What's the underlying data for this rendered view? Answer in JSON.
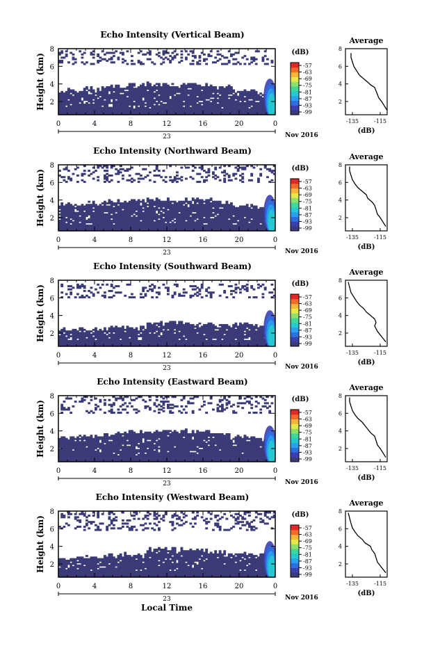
{
  "figure": {
    "xlabel": "Local Time",
    "date_label": "23",
    "month_label": "Nov 2016",
    "colorbar_unit": "(dB)",
    "colorbar_ticks": [
      "-57",
      "-63",
      "-69",
      "-75",
      "-81",
      "-87",
      "-93",
      "-99"
    ],
    "colormap": [
      "#3a3a7a",
      "#3c3fb0",
      "#2e6fe0",
      "#2aa0ee",
      "#25c9cf",
      "#3fd79a",
      "#8ee06a",
      "#e6e84a",
      "#f6b63a",
      "#f36a2a",
      "#e02828"
    ],
    "panel_bg_color": "#3b3b78",
    "avg_title": "Average",
    "avg_xlabel": "(dB)"
  },
  "chart_data": [
    {
      "type": "heatmap",
      "title": "Echo Intensity (Vertical Beam)",
      "ylabel": "Height (km)",
      "xlim": [
        0,
        24
      ],
      "ylim": [
        0.5,
        8
      ],
      "xticks": [
        "0",
        "4",
        "8",
        "12",
        "16",
        "20",
        "0"
      ],
      "yticks": [
        "2",
        "4",
        "6",
        "8"
      ],
      "lower_layer_top_km": [
        3.2,
        3.4,
        3.6,
        3.8,
        3.9,
        3.9,
        3.8,
        3.6,
        3.2,
        2.9
      ],
      "upper_layer_km": [
        6.2,
        7.8
      ],
      "average": {
        "title": "Average",
        "xlabel": "(dB)",
        "xticks": [
          "-135",
          "-115"
        ],
        "yticks": [
          "2",
          "4",
          "6",
          "8"
        ],
        "xlim": [
          -140,
          -110
        ],
        "profile": [
          [
            -110,
            1.0
          ],
          [
            -112,
            1.5
          ],
          [
            -114,
            2.0
          ],
          [
            -116,
            2.4
          ],
          [
            -117,
            2.8
          ],
          [
            -118,
            3.2
          ],
          [
            -119,
            3.6
          ],
          [
            -122,
            3.9
          ],
          [
            -124,
            4.2
          ],
          [
            -127,
            4.6
          ],
          [
            -130,
            5.0
          ],
          [
            -132,
            5.5
          ],
          [
            -134,
            6.0
          ],
          [
            -135,
            6.5
          ],
          [
            -136,
            7.0
          ],
          [
            -136,
            7.5
          ]
        ]
      }
    },
    {
      "type": "heatmap",
      "title": "Echo Intensity (Northward Beam)",
      "ylabel": "Height (km)",
      "xlim": [
        0,
        24
      ],
      "ylim": [
        0.5,
        8
      ],
      "xticks": [
        "0",
        "4",
        "8",
        "12",
        "16",
        "20",
        "0"
      ],
      "yticks": [
        "2",
        "4",
        "6",
        "8"
      ],
      "lower_layer_top_km": [
        3.4,
        3.6,
        3.8,
        3.9,
        4.0,
        4.0,
        3.9,
        3.7,
        3.3,
        3.0
      ],
      "upper_layer_km": [
        6.0,
        7.8
      ],
      "average": {
        "title": "Average",
        "xlabel": "(dB)",
        "xticks": [
          "-135",
          "-115"
        ],
        "yticks": [
          "2",
          "4",
          "6",
          "8"
        ],
        "xlim": [
          -140,
          -110
        ],
        "profile": [
          [
            -111,
            1.0
          ],
          [
            -113,
            1.5
          ],
          [
            -115,
            2.0
          ],
          [
            -117,
            2.4
          ],
          [
            -118,
            2.9
          ],
          [
            -119,
            3.4
          ],
          [
            -121,
            3.8
          ],
          [
            -124,
            4.2
          ],
          [
            -125,
            4.6
          ],
          [
            -128,
            5.0
          ],
          [
            -131,
            5.4
          ],
          [
            -133,
            5.8
          ],
          [
            -135,
            6.3
          ],
          [
            -136,
            6.8
          ],
          [
            -137,
            7.3
          ],
          [
            -137,
            7.8
          ]
        ]
      }
    },
    {
      "type": "heatmap",
      "title": "Echo Intensity (Southward Beam)",
      "ylabel": "Height (km)",
      "xlim": [
        0,
        24
      ],
      "ylim": [
        0.5,
        8
      ],
      "xticks": [
        "0",
        "4",
        "8",
        "12",
        "16",
        "20",
        "0"
      ],
      "yticks": [
        "2",
        "4",
        "6",
        "8"
      ],
      "lower_layer_top_km": [
        2.4,
        2.4,
        2.5,
        2.6,
        3.0,
        3.1,
        2.9,
        2.8,
        2.9,
        2.8
      ],
      "upper_layer_km": [
        6.0,
        7.6
      ],
      "average": {
        "title": "Average",
        "xlabel": "(dB)",
        "xticks": [
          "-135",
          "-115"
        ],
        "yticks": [
          "2",
          "4",
          "6",
          "8"
        ],
        "xlim": [
          -140,
          -110
        ],
        "profile": [
          [
            -111,
            1.0
          ],
          [
            -113,
            1.4
          ],
          [
            -115,
            1.8
          ],
          [
            -117,
            2.2
          ],
          [
            -119,
            2.8
          ],
          [
            -118,
            3.2
          ],
          [
            -119,
            3.6
          ],
          [
            -122,
            4.0
          ],
          [
            -125,
            4.4
          ],
          [
            -127,
            4.8
          ],
          [
            -130,
            5.2
          ],
          [
            -132,
            5.6
          ],
          [
            -134,
            6.1
          ],
          [
            -136,
            6.6
          ],
          [
            -137,
            7.2
          ],
          [
            -138,
            7.8
          ]
        ]
      }
    },
    {
      "type": "heatmap",
      "title": "Echo Intensity (Eastward Beam)",
      "ylabel": "Height (km)",
      "xlim": [
        0,
        24
      ],
      "ylim": [
        0.5,
        8
      ],
      "xticks": [
        "0",
        "4",
        "8",
        "12",
        "16",
        "20",
        "0"
      ],
      "yticks": [
        "2",
        "4",
        "6",
        "8"
      ],
      "lower_layer_top_km": [
        3.2,
        3.4,
        3.6,
        3.8,
        3.9,
        3.9,
        3.8,
        3.6,
        3.3,
        3.0
      ],
      "upper_layer_km": [
        6.0,
        7.8
      ],
      "average": {
        "title": "Average",
        "xlabel": "(dB)",
        "xticks": [
          "-135",
          "-115"
        ],
        "yticks": [
          "2",
          "4",
          "6",
          "8"
        ],
        "xlim": [
          -140,
          -110
        ],
        "profile": [
          [
            -111,
            1.0
          ],
          [
            -113,
            1.5
          ],
          [
            -115,
            2.0
          ],
          [
            -117,
            2.4
          ],
          [
            -118,
            2.9
          ],
          [
            -119,
            3.4
          ],
          [
            -122,
            3.8
          ],
          [
            -124,
            4.2
          ],
          [
            -126,
            4.6
          ],
          [
            -128,
            5.0
          ],
          [
            -131,
            5.4
          ],
          [
            -133,
            5.8
          ],
          [
            -135,
            6.3
          ],
          [
            -136,
            6.8
          ],
          [
            -137,
            7.3
          ],
          [
            -137,
            7.8
          ]
        ]
      }
    },
    {
      "type": "heatmap",
      "title": "Echo Intensity (Westward Beam)",
      "ylabel": "Height (km)",
      "xlim": [
        0,
        24
      ],
      "ylim": [
        0.5,
        8
      ],
      "xticks": [
        "0",
        "4",
        "8",
        "12",
        "16",
        "20",
        "0"
      ],
      "yticks": [
        "2",
        "4",
        "6",
        "8"
      ],
      "lower_layer_top_km": [
        2.6,
        2.7,
        2.9,
        3.1,
        3.6,
        3.6,
        3.5,
        3.3,
        3.1,
        2.9
      ],
      "upper_layer_km": [
        5.8,
        7.8
      ],
      "average": {
        "title": "Average",
        "xlabel": "(dB)",
        "xticks": [
          "-135",
          "-115"
        ],
        "yticks": [
          "2",
          "4",
          "6",
          "8"
        ],
        "xlim": [
          -140,
          -110
        ],
        "profile": [
          [
            -111,
            1.0
          ],
          [
            -113,
            1.4
          ],
          [
            -115,
            1.8
          ],
          [
            -117,
            2.2
          ],
          [
            -118,
            2.7
          ],
          [
            -119,
            3.2
          ],
          [
            -121,
            3.6
          ],
          [
            -122,
            4.0
          ],
          [
            -126,
            4.4
          ],
          [
            -128,
            4.8
          ],
          [
            -131,
            5.2
          ],
          [
            -133,
            5.6
          ],
          [
            -135,
            6.1
          ],
          [
            -136,
            6.6
          ],
          [
            -137,
            7.2
          ],
          [
            -138,
            7.8
          ]
        ]
      }
    }
  ]
}
